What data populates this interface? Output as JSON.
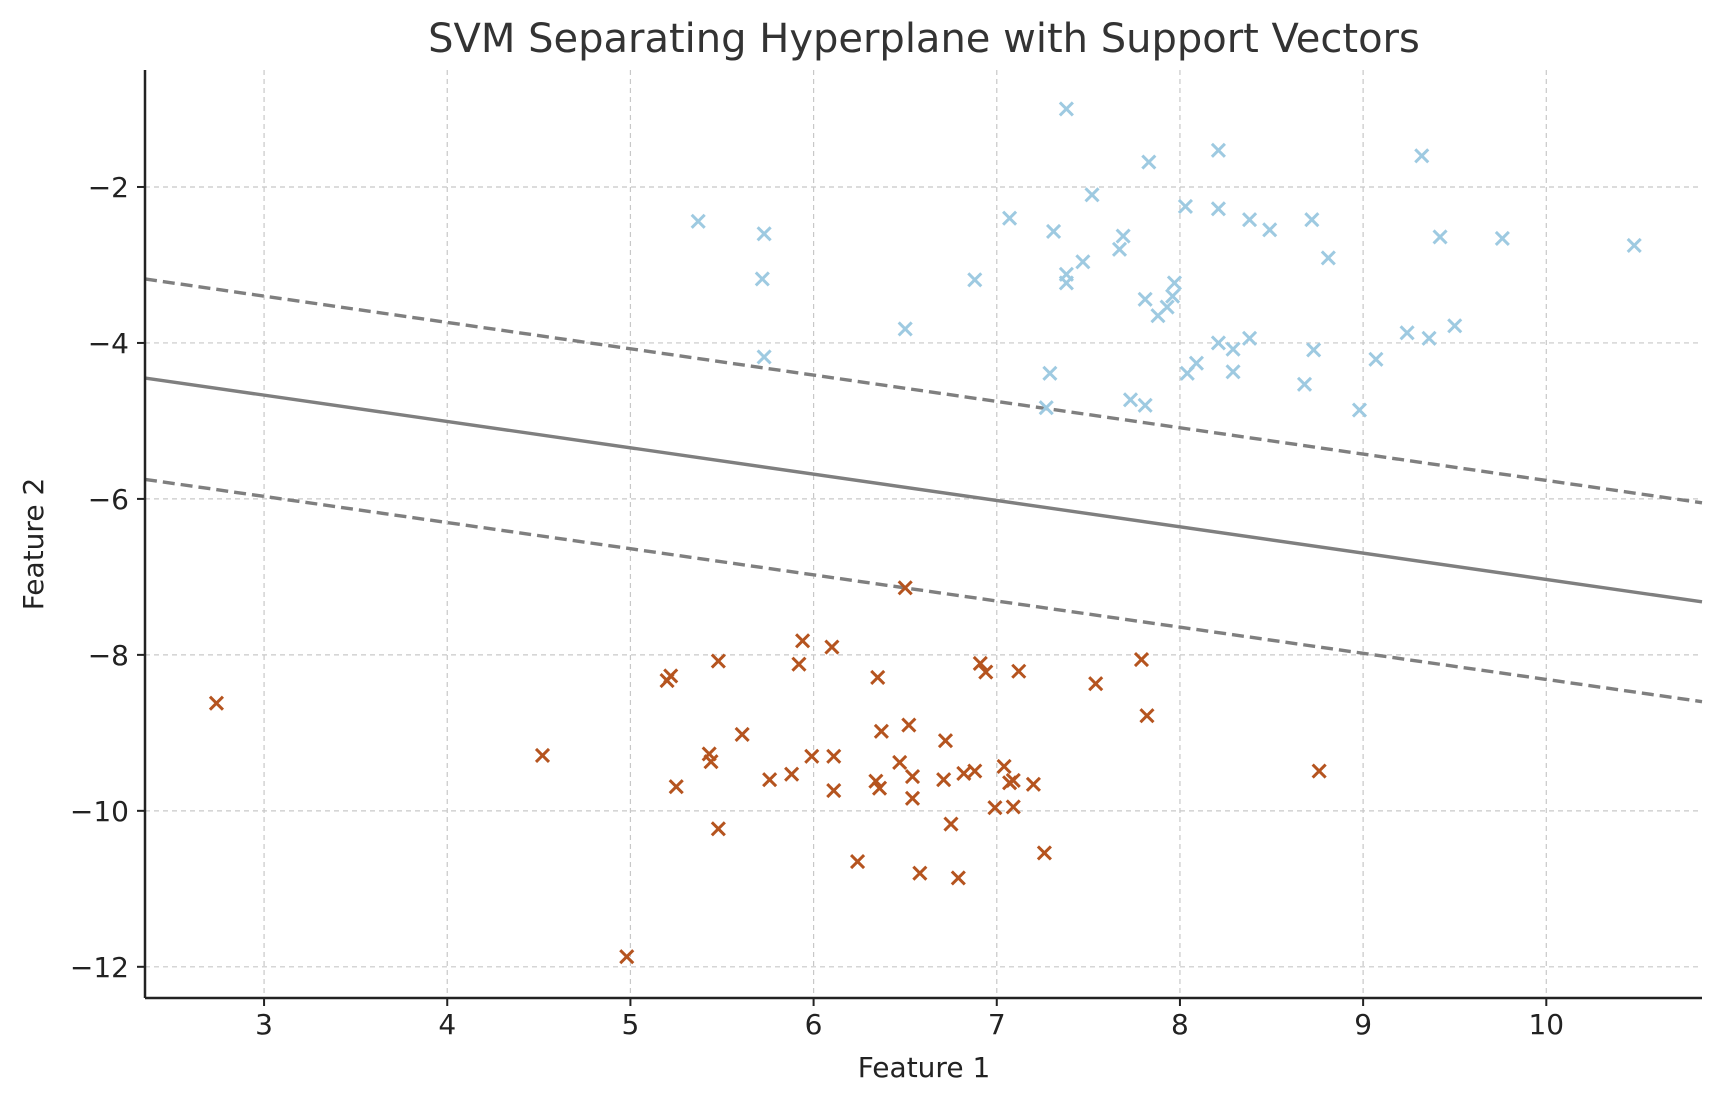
{
  "chart_data": {
    "type": "scatter",
    "title": "SVM Separating Hyperplane with Support Vectors",
    "xlabel": "Feature 1",
    "ylabel": "Feature 2",
    "xlim": [
      2.35,
      10.85
    ],
    "ylim": [
      -12.4,
      -0.5
    ],
    "x_ticks": [
      3,
      4,
      5,
      6,
      7,
      8,
      9,
      10
    ],
    "y_ticks": [
      -2,
      -4,
      -6,
      -8,
      -10,
      -12
    ],
    "x_tick_labels": [
      "3",
      "4",
      "5",
      "6",
      "7",
      "8",
      "9",
      "10"
    ],
    "y_tick_labels": [
      "−2",
      "−4",
      "−6",
      "−8",
      "−10",
      "−12"
    ],
    "grid": true,
    "legend": "none",
    "colors": {
      "class_upper": "#9ecae1",
      "class_lower": "#b5541f",
      "hyperplane": "#7f7f7f",
      "margin": "#7f7f7f",
      "grid": "#c8c8c8",
      "axis": "#222222"
    },
    "lines": [
      {
        "name": "decision boundary",
        "style": "solid",
        "x": [
          2.35,
          10.85
        ],
        "y": [
          -4.45,
          -7.32
        ]
      },
      {
        "name": "upper margin",
        "style": "dashed",
        "x": [
          2.35,
          10.85
        ],
        "y": [
          -3.18,
          -6.05
        ]
      },
      {
        "name": "lower margin",
        "style": "dashed",
        "x": [
          2.35,
          10.85
        ],
        "y": [
          -5.75,
          -8.6
        ]
      }
    ],
    "series": [
      {
        "marker": "x",
        "color": "#9ecae1",
        "points": [
          [
            7.38,
            -1.0
          ],
          [
            8.21,
            -1.53
          ],
          [
            9.32,
            -1.6
          ],
          [
            7.83,
            -1.68
          ],
          [
            7.52,
            -2.1
          ],
          [
            8.03,
            -2.25
          ],
          [
            8.21,
            -2.28
          ],
          [
            5.37,
            -2.44
          ],
          [
            7.07,
            -2.4
          ],
          [
            8.38,
            -2.42
          ],
          [
            8.72,
            -2.42
          ],
          [
            8.49,
            -2.55
          ],
          [
            7.31,
            -2.57
          ],
          [
            5.73,
            -2.6
          ],
          [
            7.69,
            -2.63
          ],
          [
            9.42,
            -2.64
          ],
          [
            9.76,
            -2.66
          ],
          [
            10.48,
            -2.75
          ],
          [
            7.67,
            -2.8
          ],
          [
            8.81,
            -2.91
          ],
          [
            7.47,
            -2.96
          ],
          [
            7.38,
            -3.12
          ],
          [
            5.72,
            -3.18
          ],
          [
            6.88,
            -3.19
          ],
          [
            7.38,
            -3.23
          ],
          [
            7.97,
            -3.23
          ],
          [
            7.96,
            -3.4
          ],
          [
            7.81,
            -3.44
          ],
          [
            7.93,
            -3.54
          ],
          [
            7.88,
            -3.65
          ],
          [
            9.5,
            -3.78
          ],
          [
            6.5,
            -3.82
          ],
          [
            9.24,
            -3.87
          ],
          [
            8.38,
            -3.94
          ],
          [
            9.36,
            -3.94
          ],
          [
            8.21,
            -4.0
          ],
          [
            8.29,
            -4.08
          ],
          [
            8.73,
            -4.09
          ],
          [
            5.73,
            -4.18
          ],
          [
            9.07,
            -4.21
          ],
          [
            8.09,
            -4.26
          ],
          [
            7.29,
            -4.39
          ],
          [
            8.29,
            -4.37
          ],
          [
            8.04,
            -4.39
          ],
          [
            8.68,
            -4.53
          ],
          [
            7.73,
            -4.73
          ],
          [
            7.81,
            -4.8
          ],
          [
            7.27,
            -4.83
          ],
          [
            8.98,
            -4.86
          ]
        ]
      },
      {
        "marker": "x",
        "color": "#b5541f",
        "points": [
          [
            6.5,
            -7.14
          ],
          [
            5.94,
            -7.82
          ],
          [
            6.1,
            -7.9
          ],
          [
            7.79,
            -8.06
          ],
          [
            5.48,
            -8.08
          ],
          [
            6.91,
            -8.11
          ],
          [
            5.92,
            -8.12
          ],
          [
            7.12,
            -8.21
          ],
          [
            6.94,
            -8.22
          ],
          [
            5.22,
            -8.27
          ],
          [
            6.35,
            -8.29
          ],
          [
            5.2,
            -8.33
          ],
          [
            7.54,
            -8.37
          ],
          [
            2.74,
            -8.62
          ],
          [
            7.82,
            -8.78
          ],
          [
            6.52,
            -8.9
          ],
          [
            6.37,
            -8.98
          ],
          [
            5.61,
            -9.02
          ],
          [
            6.72,
            -9.1
          ],
          [
            4.52,
            -9.29
          ],
          [
            5.43,
            -9.27
          ],
          [
            5.99,
            -9.3
          ],
          [
            6.11,
            -9.3
          ],
          [
            5.44,
            -9.37
          ],
          [
            6.47,
            -9.38
          ],
          [
            7.04,
            -9.43
          ],
          [
            8.76,
            -9.49
          ],
          [
            6.88,
            -9.49
          ],
          [
            5.88,
            -9.53
          ],
          [
            6.82,
            -9.52
          ],
          [
            6.54,
            -9.56
          ],
          [
            5.76,
            -9.6
          ],
          [
            6.34,
            -9.62
          ],
          [
            6.71,
            -9.6
          ],
          [
            7.09,
            -9.61
          ],
          [
            7.07,
            -9.64
          ],
          [
            7.2,
            -9.66
          ],
          [
            5.25,
            -9.69
          ],
          [
            6.36,
            -9.71
          ],
          [
            6.11,
            -9.74
          ],
          [
            6.54,
            -9.84
          ],
          [
            7.09,
            -9.95
          ],
          [
            6.99,
            -9.96
          ],
          [
            6.75,
            -10.17
          ],
          [
            5.48,
            -10.23
          ],
          [
            7.26,
            -10.54
          ],
          [
            6.24,
            -10.65
          ],
          [
            6.58,
            -10.8
          ],
          [
            6.79,
            -10.86
          ],
          [
            4.98,
            -11.87
          ]
        ]
      }
    ]
  }
}
